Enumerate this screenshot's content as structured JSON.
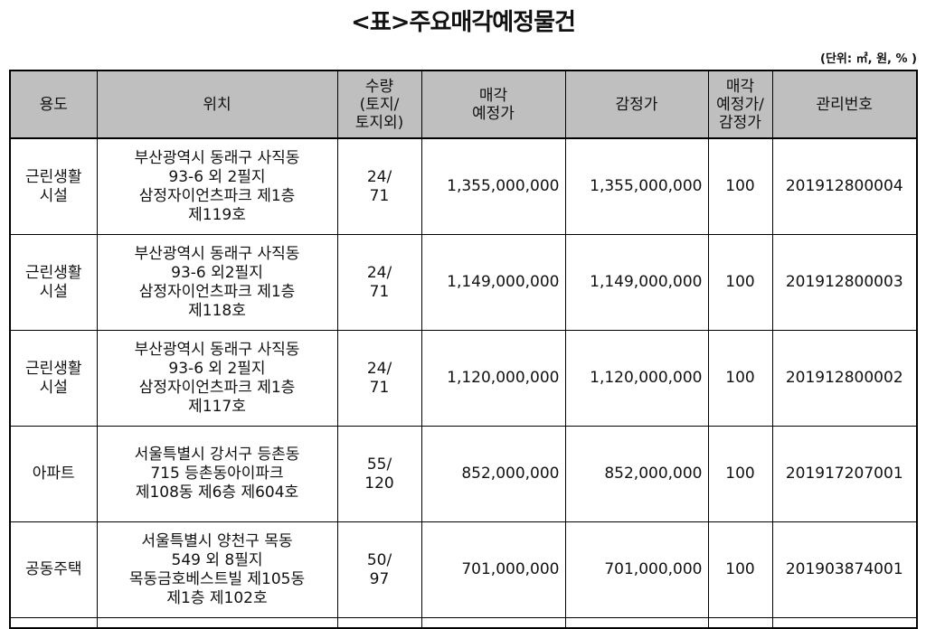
{
  "title": "<표>주요매각예정물건",
  "unit": "(단위: ㎡, 원, % )",
  "columns": [
    "용도",
    "위치",
    "수량\n(토지/\n토지외)",
    "매각\n예정가",
    "감정가",
    "매각\n예정가/\n감정가",
    "관리번호"
  ],
  "rows": [
    {
      "use": "근린생활\n시설",
      "location": "부산광역시  동래구 사직동\n93-6 외 2필지\n삼정자이언츠파크 제1층\n제119호",
      "quantity": "24/\n71",
      "sale_price": "1,355,000,000",
      "appraisal": "1,355,000,000",
      "ratio": "100",
      "id": "201912800004"
    },
    {
      "use": "근린생활\n시설",
      "location": "부산광역시 동래구 사직동\n93-6 외2필지\n삼정자이언츠파크 제1층\n제118호",
      "quantity": "24/\n71",
      "sale_price": "1,149,000,000",
      "appraisal": "1,149,000,000",
      "ratio": "100",
      "id": "201912800003"
    },
    {
      "use": "근린생활\n시설",
      "location": "부산광역시 동래구 사직동\n93-6 외 2필지\n삼정자이언츠파크 제1층\n제117호",
      "quantity": "24/\n71",
      "sale_price": "1,120,000,000",
      "appraisal": "1,120,000,000",
      "ratio": "100",
      "id": "201912800002"
    },
    {
      "use": "아파트",
      "location": "서울특별시 강서구 등촌동\n715 등촌동아이파크\n제108동 제6층 제604호",
      "quantity": "55/\n120",
      "sale_price": "852,000,000",
      "appraisal": "852,000,000",
      "ratio": "100",
      "id": "201917207001"
    },
    {
      "use": "공동주택",
      "location": "서울특별시 양천구 목동\n549 외 8필지\n목동금호베스트빌 제105동\n제1층 제102호",
      "quantity": "50/\n97",
      "sale_price": "701,000,000",
      "appraisal": "701,000,000",
      "ratio": "100",
      "id": "201903874001"
    }
  ]
}
